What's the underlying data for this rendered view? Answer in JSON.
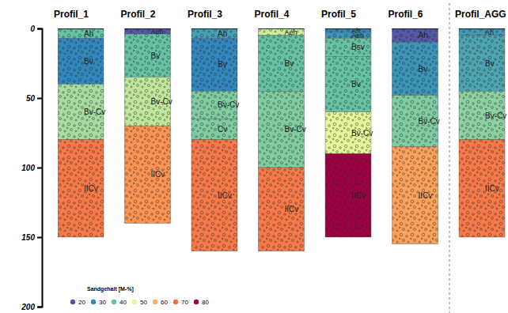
{
  "chart_data": {
    "type": "profile",
    "ylim": [
      0,
      200
    ],
    "yticks": [
      0,
      50,
      100,
      150,
      200
    ],
    "profiles": [
      {
        "name": "Profil_1",
        "horizons": [
          {
            "label": "Ah",
            "top": 0,
            "bottom": 7,
            "sand": 40
          },
          {
            "label": "Bv",
            "top": 7,
            "bottom": 40,
            "sand": 30
          },
          {
            "label": "Bv-Cv",
            "top": 40,
            "bottom": 80,
            "sand": 45
          },
          {
            "label": "IICv",
            "top": 80,
            "bottom": 150,
            "sand": 68
          }
        ]
      },
      {
        "name": "Profil_2",
        "horizons": [
          {
            "label": "Aeh",
            "top": 0,
            "bottom": 4,
            "sand": 22
          },
          {
            "label": "Bv",
            "top": 4,
            "bottom": 35,
            "sand": 40
          },
          {
            "label": "Bv-Cv",
            "top": 35,
            "bottom": 70,
            "sand": 47
          },
          {
            "label": "IICv",
            "top": 70,
            "bottom": 140,
            "sand": 64
          }
        ]
      },
      {
        "name": "Profil_3",
        "horizons": [
          {
            "label": "Ah",
            "top": 0,
            "bottom": 7,
            "sand": 34
          },
          {
            "label": "Bv",
            "top": 7,
            "bottom": 45,
            "sand": 30
          },
          {
            "label": "Bv-Cv",
            "top": 45,
            "bottom": 65,
            "sand": 42
          },
          {
            "label": "Cv",
            "top": 65,
            "bottom": 80,
            "sand": 42
          },
          {
            "label": "IICv",
            "top": 80,
            "bottom": 160,
            "sand": 68
          }
        ]
      },
      {
        "name": "Profil_4",
        "horizons": [
          {
            "label": "Aeh",
            "top": 0,
            "bottom": 5,
            "sand": 48
          },
          {
            "label": "Bv",
            "top": 5,
            "bottom": 45,
            "sand": 40
          },
          {
            "label": "Bv-Cv",
            "top": 45,
            "bottom": 100,
            "sand": 42
          },
          {
            "label": "IICv",
            "top": 100,
            "bottom": 160,
            "sand": 68
          }
        ]
      },
      {
        "name": "Profil_5",
        "horizons": [
          {
            "label": "Ah",
            "top": 0,
            "bottom": 3,
            "sand": 30
          },
          {
            "label": "Aeh",
            "top": 3,
            "bottom": 7,
            "sand": 32
          },
          {
            "label": "Bsv",
            "top": 7,
            "bottom": 20,
            "sand": 40
          },
          {
            "label": "Bv",
            "top": 20,
            "bottom": 60,
            "sand": 40
          },
          {
            "label": "Bv-Cv",
            "top": 60,
            "bottom": 90,
            "sand": 50
          },
          {
            "label": "IICv",
            "top": 90,
            "bottom": 150,
            "sand": 80
          }
        ]
      },
      {
        "name": "Profil_6",
        "horizons": [
          {
            "label": "Ah",
            "top": 0,
            "bottom": 10,
            "sand": 22
          },
          {
            "label": "Bv",
            "top": 10,
            "bottom": 48,
            "sand": 32
          },
          {
            "label": "Bv-Cv",
            "top": 48,
            "bottom": 85,
            "sand": 42
          },
          {
            "label": "IICv",
            "top": 85,
            "bottom": 155,
            "sand": 62
          }
        ]
      },
      {
        "name": "Profil_AGG",
        "horizons": [
          {
            "label": "Ah",
            "top": 0,
            "bottom": 5,
            "sand": 33
          },
          {
            "label": "Bv",
            "top": 5,
            "bottom": 45,
            "sand": 35
          },
          {
            "label": "Bv-Cv",
            "top": 45,
            "bottom": 80,
            "sand": 43
          },
          {
            "label": "IICv",
            "top": 80,
            "bottom": 150,
            "sand": 68
          }
        ]
      }
    ],
    "color_scale": {
      "title": "Sandgehalt [M-%]",
      "ticks": [
        20,
        30,
        40,
        50,
        60,
        70,
        80
      ],
      "colors": [
        "#5e4fa2",
        "#3288bd",
        "#66c2a5",
        "#e6f598",
        "#fdae61",
        "#f46d43",
        "#9e0142"
      ]
    }
  }
}
